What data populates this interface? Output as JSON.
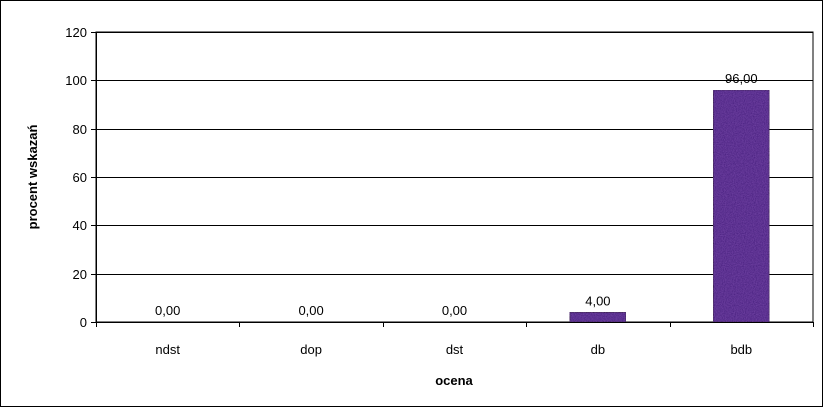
{
  "chart_data": {
    "type": "bar",
    "categories": [
      "ndst",
      "dop",
      "dst",
      "db",
      "bdb"
    ],
    "values": [
      0,
      0,
      0,
      4,
      96
    ],
    "data_labels": [
      "0,00",
      "0,00",
      "0,00",
      "4,00",
      "96,00"
    ],
    "title": "",
    "xlabel": "ocena",
    "ylabel": "procent wskazań",
    "ylim": [
      0,
      120
    ],
    "yticks": [
      0,
      20,
      40,
      60,
      80,
      100,
      120
    ],
    "ytick_labels": [
      "0",
      "20",
      "40",
      "60",
      "80",
      "100",
      "120"
    ],
    "grid": true,
    "legend": "none",
    "bar_color": "#3d1478"
  }
}
